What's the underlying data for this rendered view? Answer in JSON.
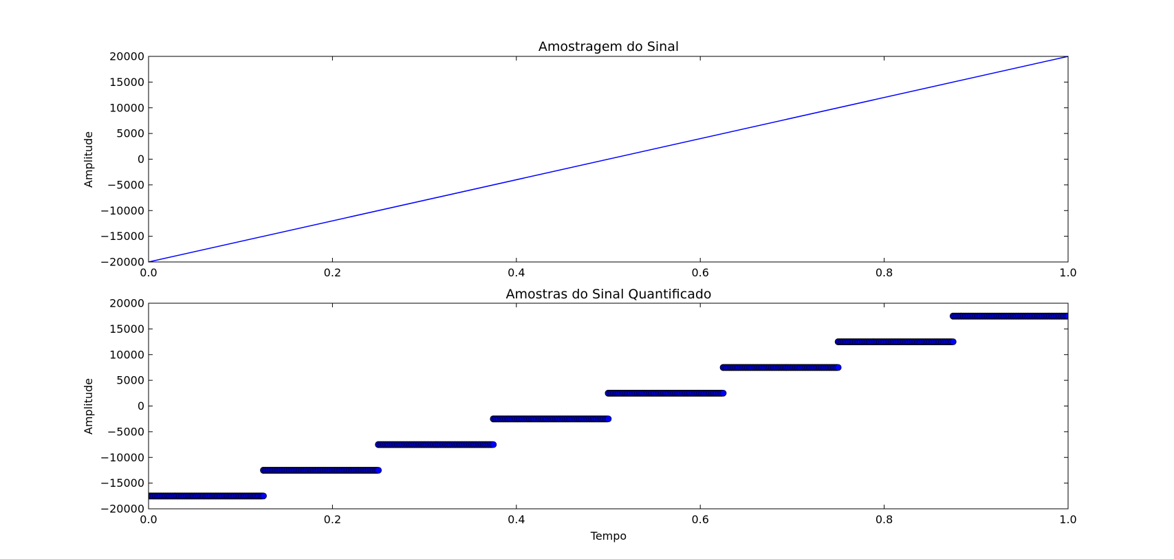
{
  "chart_data": [
    {
      "type": "line",
      "title": "Amostragem do Sinal",
      "xlabel": "",
      "ylabel": "Amplitude",
      "xlim": [
        0.0,
        1.0
      ],
      "ylim": [
        -20000,
        20000
      ],
      "xticks": [
        "0.0",
        "0.2",
        "0.4",
        "0.6",
        "0.8",
        "1.0"
      ],
      "yticks": [
        "20000",
        "15000",
        "10000",
        "5000",
        "0",
        "−5000",
        "−10000",
        "−15000",
        "−20000"
      ],
      "series": [
        {
          "color": "#0000ff",
          "x": [
            0.0,
            1.0
          ],
          "y": [
            -20000,
            20000
          ]
        }
      ]
    },
    {
      "type": "scatter",
      "title": "Amostras do Sinal Quantificado",
      "xlabel": "Tempo",
      "ylabel": "Amplitude",
      "xlim": [
        0.0,
        1.0
      ],
      "ylim": [
        -20000,
        20000
      ],
      "xticks": [
        "0.0",
        "0.2",
        "0.4",
        "0.6",
        "0.8",
        "1.0"
      ],
      "yticks": [
        "20000",
        "15000",
        "10000",
        "5000",
        "0",
        "−5000",
        "−10000",
        "−15000",
        "−20000"
      ],
      "marker_color": "#0000ff",
      "marker_edge": "#000000",
      "levels": [
        {
          "x": [
            0.0,
            0.125
          ],
          "y": -17500
        },
        {
          "x": [
            0.125,
            0.25
          ],
          "y": -12500
        },
        {
          "x": [
            0.25,
            0.375
          ],
          "y": -7500
        },
        {
          "x": [
            0.375,
            0.5
          ],
          "y": -2500
        },
        {
          "x": [
            0.5,
            0.625
          ],
          "y": 2500
        },
        {
          "x": [
            0.625,
            0.75
          ],
          "y": 7500
        },
        {
          "x": [
            0.75,
            0.875
          ],
          "y": 12500
        },
        {
          "x": [
            0.875,
            1.0
          ],
          "y": 17500
        }
      ]
    }
  ]
}
